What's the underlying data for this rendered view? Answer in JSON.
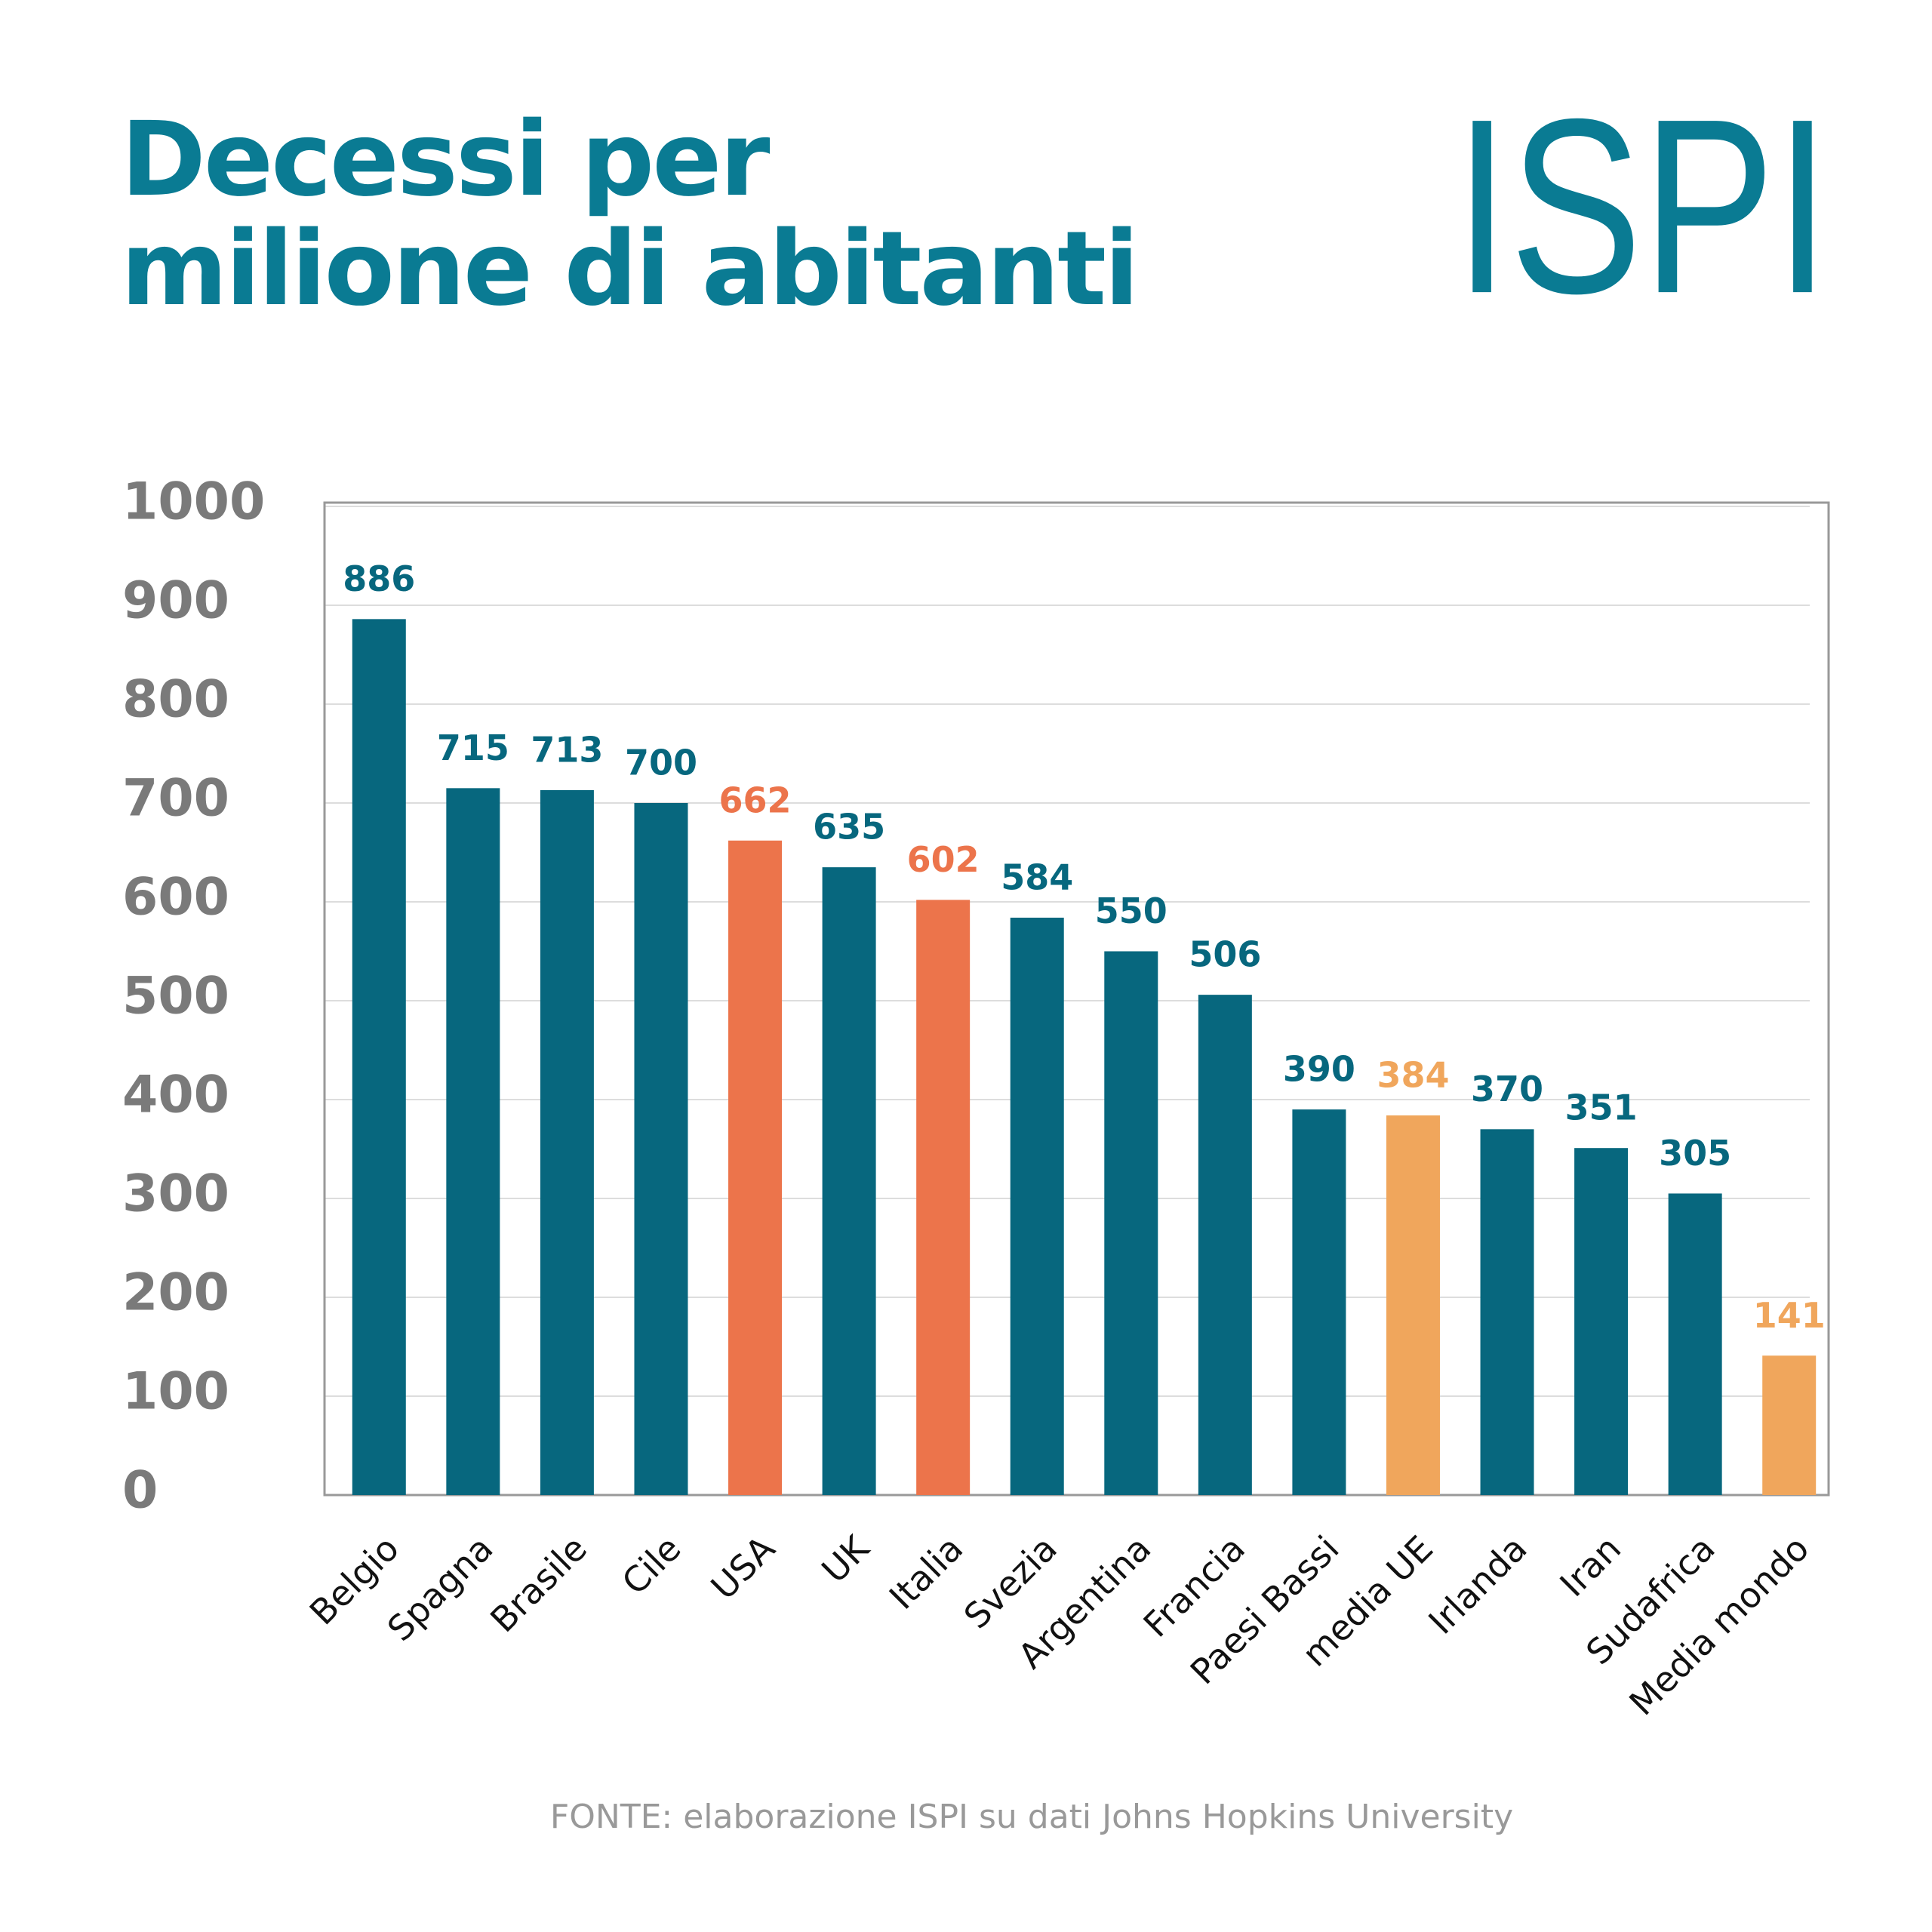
{
  "chart_data": {
    "type": "bar",
    "title": "Decessi per milione di abitanti",
    "logo": "ISPI",
    "source": "FONTE: elaborazione ISPI su dati Johns Hopkins University",
    "categories": [
      "Belgio",
      "Spagna",
      "Brasile",
      "Cile",
      "USA",
      "UK",
      "Italia",
      "Svezia",
      "Argentina",
      "Francia",
      "Paesi Bassi",
      "media UE",
      "Irlanda",
      "Iran",
      "Sudafrica",
      "Media mondo"
    ],
    "values": [
      886,
      715,
      713,
      700,
      662,
      635,
      602,
      584,
      550,
      506,
      390,
      384,
      370,
      351,
      305,
      141
    ],
    "colors": [
      "#07677e",
      "#07677e",
      "#07677e",
      "#07677e",
      "#ec744b",
      "#07677e",
      "#ec744b",
      "#07677e",
      "#07677e",
      "#07677e",
      "#07677e",
      "#f0a65c",
      "#07677e",
      "#07677e",
      "#07677e",
      "#f0a65c"
    ],
    "ylim": [
      0,
      1000
    ],
    "yticks": [
      0,
      100,
      200,
      300,
      400,
      500,
      600,
      700,
      800,
      900,
      1000
    ],
    "grid": true
  }
}
